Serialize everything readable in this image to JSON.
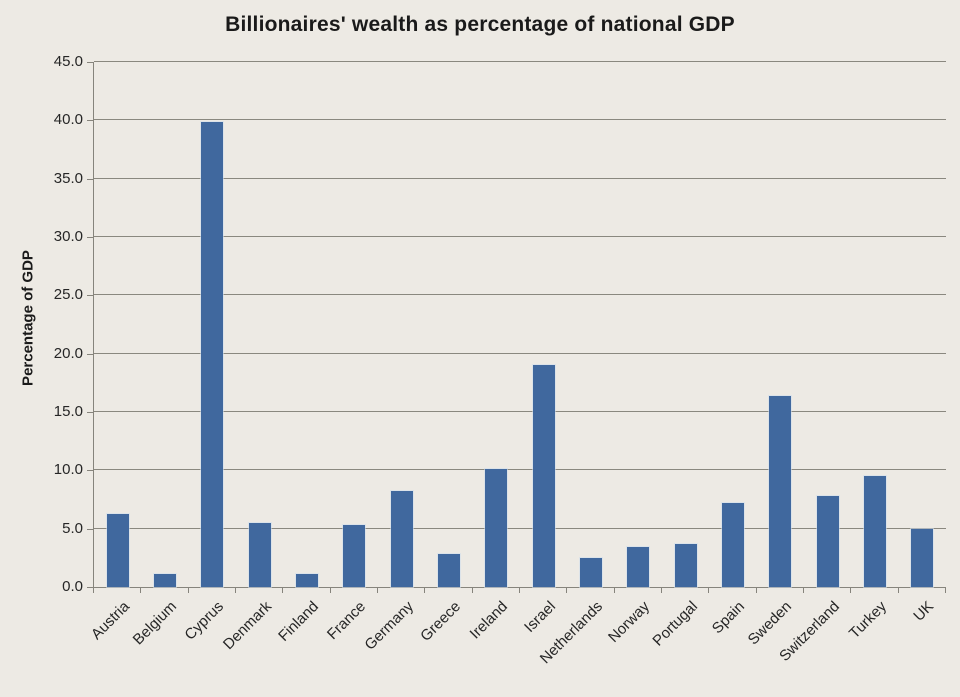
{
  "colors": {
    "background": "#edeae4",
    "bar": "#40689e",
    "gridline": "#8a887f",
    "axis": "#86847c",
    "text": "#1a1a1a"
  },
  "chart_data": {
    "type": "bar",
    "title": "Billionaires' wealth as percentage of national GDP",
    "xlabel": "",
    "ylabel": "Percentage of GDP",
    "ylim": [
      0,
      45
    ],
    "ytick_step": 5,
    "ytick_labels": [
      "0.0",
      "5.0",
      "10.0",
      "15.0",
      "20.0",
      "25.0",
      "30.0",
      "35.0",
      "40.0",
      "45.0"
    ],
    "grid": true,
    "legend": false,
    "categories": [
      "Austria",
      "Belgium",
      "Cyprus",
      "Denmark",
      "Finland",
      "France",
      "Germany",
      "Greece",
      "Ireland",
      "Israel",
      "Netherlands",
      "Norway",
      "Portugal",
      "Spain",
      "Sweden",
      "Switzerland",
      "Turkey",
      "UK"
    ],
    "values": [
      6.3,
      1.1,
      39.9,
      5.5,
      1.1,
      5.3,
      8.2,
      2.8,
      10.1,
      19.0,
      2.5,
      3.4,
      3.7,
      7.2,
      16.4,
      7.8,
      9.5,
      5.0
    ]
  }
}
